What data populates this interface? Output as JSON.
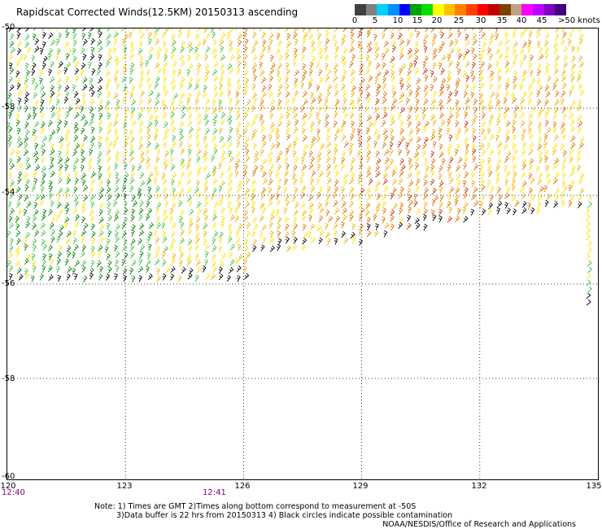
{
  "title": "Rapidscat Corrected Winds(12.5KM) 20150313 ascending",
  "colorbar": {
    "labels": [
      "0",
      "5",
      "10",
      "15",
      "20",
      "25",
      "30",
      "35",
      "40",
      "45"
    ],
    "last_label": ">50 knots",
    "colors": [
      "#404040",
      "#808080",
      "#00d0ff",
      "#0090ff",
      "#0000ff",
      "#00a000",
      "#00e000",
      "#ffff00",
      "#ffc000",
      "#ff8000",
      "#ff4000",
      "#ff0000",
      "#c00000",
      "#804000",
      "#c0a080",
      "#ff00ff",
      "#c000ff",
      "#8000c0",
      "#400080"
    ]
  },
  "axes": {
    "lat_labels": [
      "-50",
      "-58",
      "-54",
      "-56",
      "-58",
      "-60"
    ],
    "lon_labels": [
      "120",
      "123",
      "126",
      "129",
      "132",
      "135"
    ],
    "times": [
      "12:40",
      "12:41"
    ]
  },
  "notes": {
    "line1": "Note: 1) Times are GMT 2)Times along bottom correspond to measurement at -50S",
    "line2": "3)Data buffer is 22 hrs from 20150313 4) Black circles indicate possible contamination"
  },
  "credit": "NOAA/NESDIS/Office of Research and Applications",
  "map": {
    "lat_range": [
      -60,
      -50
    ],
    "lon_range": [
      120,
      135
    ],
    "swath_colors": {
      "calm": "#000000",
      "green": "#008000",
      "lightgreen": "#40c040",
      "yellow": "#ffe000",
      "gold": "#f0b000",
      "orange": "#e07000",
      "red": "#c03000"
    }
  }
}
